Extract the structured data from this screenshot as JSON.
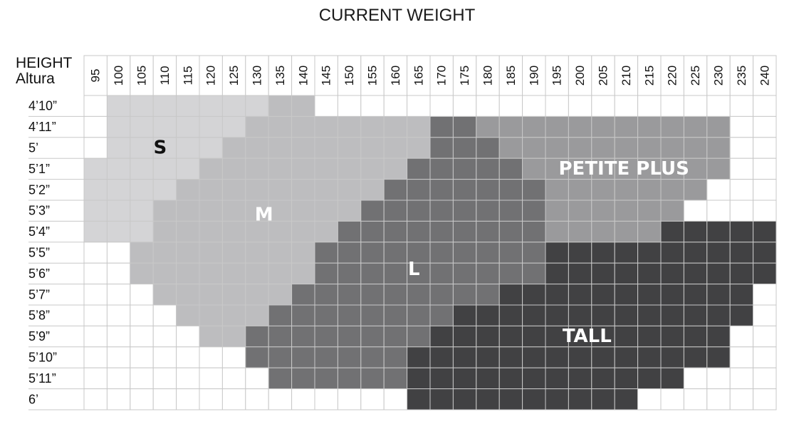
{
  "chart_data": {
    "type": "heatmap",
    "title": "CURRENT WEIGHT",
    "row_axis_label_1": "HEIGHT",
    "row_axis_label_2": "Altura",
    "columns": [
      "95",
      "100",
      "105",
      "110",
      "115",
      "120",
      "125",
      "130",
      "135",
      "140",
      "145",
      "150",
      "155",
      "160",
      "165",
      "170",
      "175",
      "180",
      "185",
      "190",
      "195",
      "200",
      "205",
      "210",
      "215",
      "220",
      "225",
      "230",
      "235",
      "240"
    ],
    "rows": [
      "4’10”",
      "4’11”",
      "5’",
      "5’1”",
      "5’2”",
      "5’3”",
      "5’4”",
      "5’5”",
      "5’6”",
      "5’7”",
      "5’8”",
      "5’9”",
      "5’10”",
      "5’11”",
      "6’"
    ],
    "sizes": {
      "S": {
        "label": "S",
        "color": "#d4d4d6",
        "text_color": "#111111"
      },
      "M": {
        "label": "M",
        "color": "#bdbdbf",
        "text_color": "#ffffff"
      },
      "L": {
        "label": "L",
        "color": "#717173",
        "text_color": "#ffffff"
      },
      "P": {
        "label": "PETITE PLUS",
        "color": "#9a9a9c",
        "text_color": "#ffffff"
      },
      "T": {
        "label": "TALL",
        "color": "#414143",
        "text_color": "#ffffff"
      }
    },
    "grid": [
      ".SSSSSSSMM....................",
      ".SSSSSSMMMMMMMMLLPPPPPPPPPPP..",
      ".SSSSSMMMMMMMMMLLLPPPPPPPPPP..",
      "SSSSSMMMMMMMMMLLLLLPPPPPPPPP..",
      "SSSSMMMMMMMMMLLLLLLLPPPPPPP...",
      "SSSMMMMMMMMMLLLLLLLLPPPPPP....",
      "SSSMMMMMMMMLLLLLLLLLPPPPPTTTTT",
      "..MMMMMMMMLLLLLLLLLLTTTTTTTTTT",
      "..MMMMMMMMLLLLLLLLLLTTTTTTTTTT",
      "...MMMMMMLLLLLLLLLTTTTTTTTTTT.",
      "....MMMMLLLLLLLLTTTTTTTTTTTTT.",
      ".....MMLLLLLLLLTTTTTTTTTTTTT..",
      ".......LLLLLLLTTTTTTTTTTTTTT..",
      "........LLLLLLTTTTTTTTTTTT....",
      "..............TTTTTTTTTT......"
    ]
  }
}
